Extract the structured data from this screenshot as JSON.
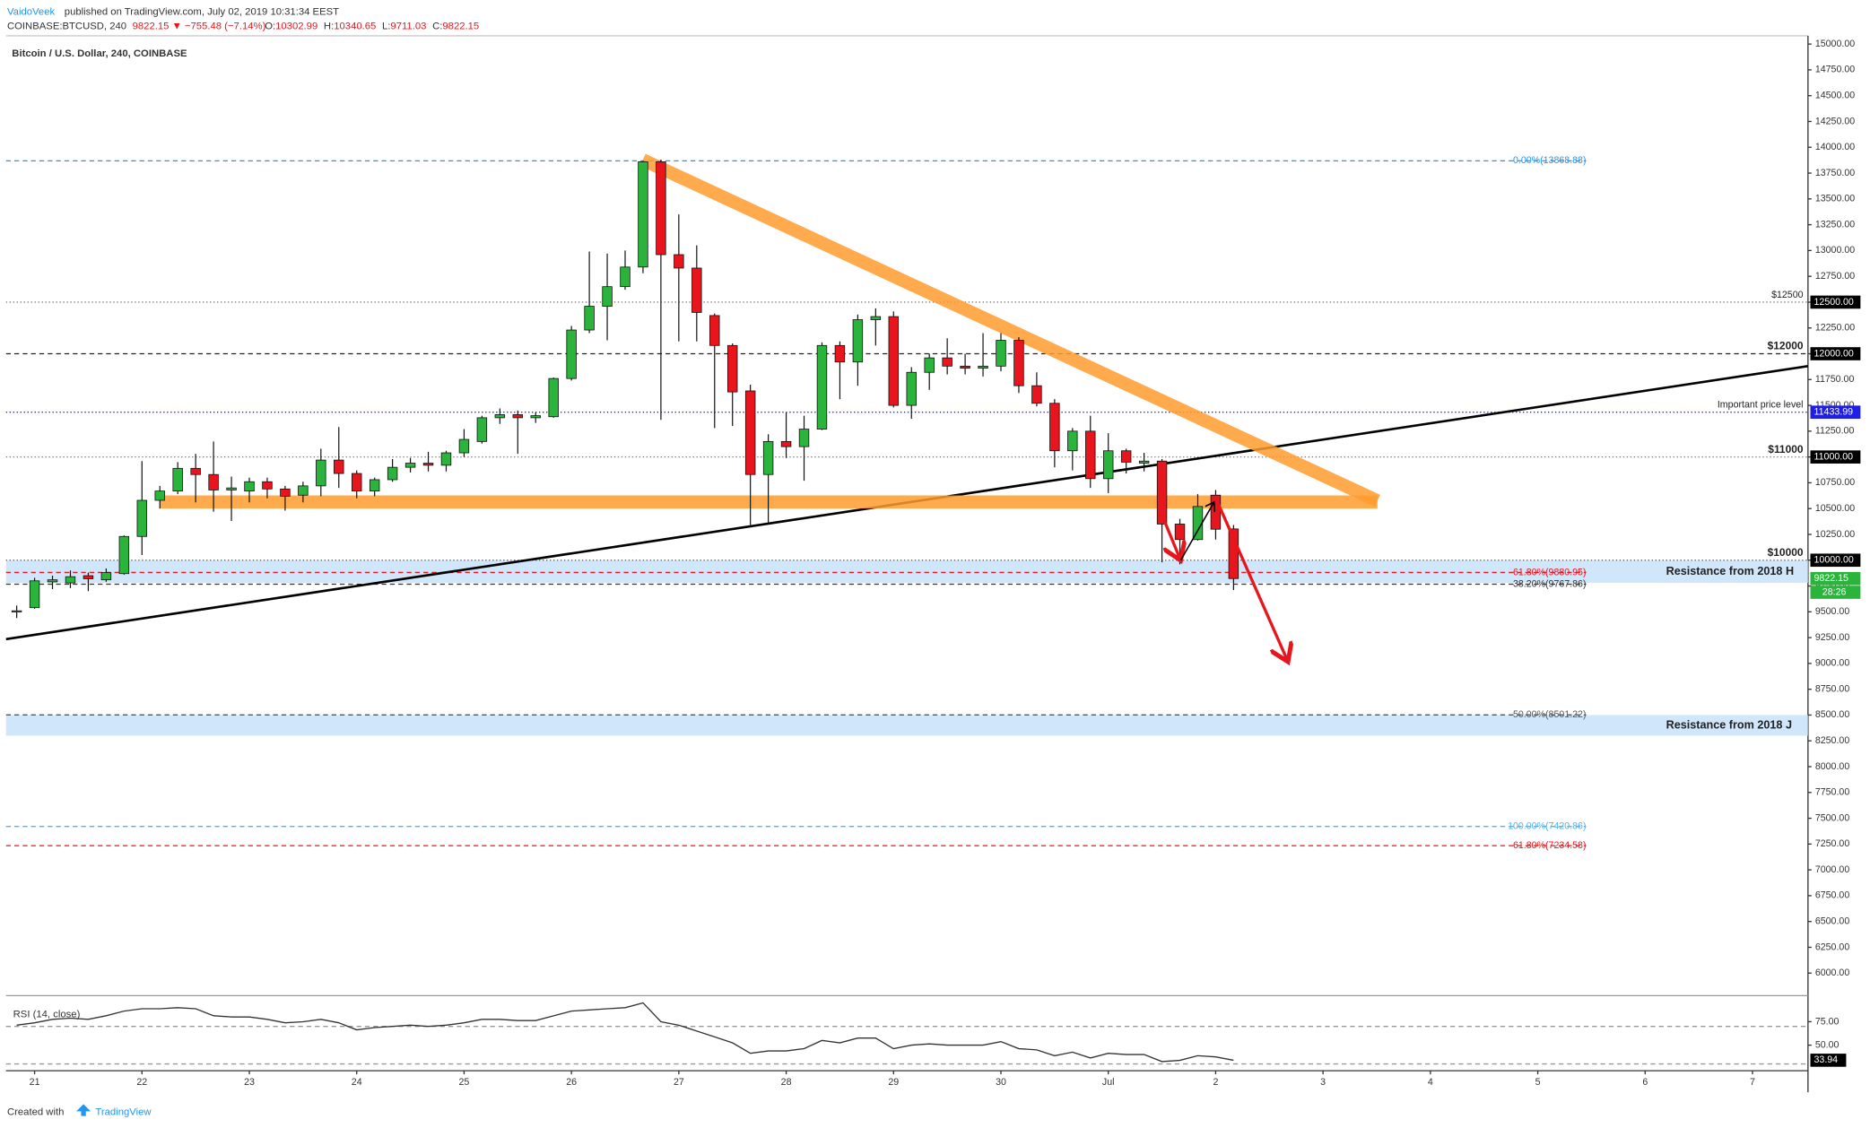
{
  "header": {
    "author": "VaidoVeek",
    "published": "published on TradingView.com, July 02, 2019 10:31:34 EEST",
    "symbol": "COINBASE:BTCUSD, 240",
    "change": "9822.15 ▼ −755.48 (−7.14%)",
    "ohlc_labels": [
      "O:",
      "H:",
      "L:",
      "C:"
    ]
  },
  "footer": {
    "created": "Created with",
    "brand": "TradingView"
  },
  "chart_data": {
    "type": "candlestick",
    "title": "Bitcoin / U.S. Dollar, 240, COINBASE",
    "up_color": "#2ab43c",
    "down_color": "#e8151d",
    "open": [
      9500,
      9540,
      9790,
      9780,
      9850,
      9810,
      9870,
      10230,
      10580,
      10670,
      10890,
      10830,
      10680,
      10670,
      10760,
      10690,
      10630,
      10720,
      10970,
      10840,
      10670,
      10780,
      10900,
      10940,
      10920,
      11040,
      11150,
      11380,
      11410,
      11380,
      11390,
      11760,
      12230,
      12460,
      12650,
      12840,
      13860,
      12960,
      12830,
      12370,
      12080,
      11640,
      10830,
      11150,
      11100,
      11270,
      12080,
      11920,
      12330,
      12360,
      11500,
      11820,
      11960,
      11880,
      11860,
      11880,
      12130,
      11690,
      11520,
      11060,
      11250,
      10790,
      11060,
      10940,
      10960,
      10350,
      10200,
      10630,
      10302.99
    ],
    "high": [
      9560,
      9830,
      9850,
      9900,
      9880,
      9920,
      10240,
      10960,
      10720,
      10950,
      11030,
      11150,
      10810,
      10800,
      10800,
      10720,
      10760,
      11080,
      11290,
      10870,
      10800,
      10980,
      10990,
      11050,
      11060,
      11270,
      11400,
      11470,
      11450,
      11430,
      11770,
      12270,
      12990,
      12970,
      13000,
      13870,
      13880,
      13350,
      13050,
      12390,
      12100,
      11700,
      11220,
      11430,
      11400,
      12110,
      12120,
      12380,
      12440,
      12410,
      11870,
      12000,
      12150,
      12000,
      12200,
      12200,
      12160,
      11820,
      11560,
      11280,
      11400,
      11230,
      11080,
      11040,
      10980,
      10400,
      10640,
      10680,
      10340.65
    ],
    "low": [
      9440,
      9530,
      9720,
      9730,
      9700,
      9790,
      9860,
      10050,
      10500,
      10640,
      10560,
      10470,
      10380,
      10560,
      10600,
      10480,
      10560,
      10620,
      10700,
      10600,
      10620,
      10760,
      10850,
      10860,
      10860,
      11000,
      11130,
      11320,
      11030,
      11330,
      11380,
      11740,
      12200,
      12130,
      12620,
      12780,
      11360,
      12120,
      12120,
      11280,
      11300,
      10340,
      10360,
      10990,
      10770,
      11260,
      11560,
      11690,
      12080,
      11480,
      11370,
      11650,
      11800,
      11800,
      11780,
      11830,
      11620,
      11490,
      10900,
      10870,
      10700,
      10650,
      10840,
      10860,
      9980,
      9960,
      10190,
      10200,
      9711.03
    ],
    "close": [
      9510,
      9800,
      9810,
      9840,
      9820,
      9880,
      10230,
      10580,
      10670,
      10890,
      10830,
      10680,
      10700,
      10760,
      10690,
      10620,
      10720,
      10970,
      10840,
      10670,
      10780,
      10900,
      10940,
      10920,
      11040,
      11170,
      11380,
      11410,
      11380,
      11400,
      11760,
      12230,
      12460,
      12650,
      12840,
      13860,
      12960,
      12830,
      12400,
      12080,
      11630,
      10830,
      11150,
      11100,
      11270,
      12080,
      11920,
      12330,
      12360,
      11500,
      11820,
      11960,
      11880,
      11860,
      11880,
      12130,
      11690,
      11520,
      11060,
      11250,
      10790,
      11060,
      10950,
      10960,
      10350,
      10200,
      10520,
      10300,
      9822.15
    ],
    "xlim": [
      -0.6,
      100.1
    ],
    "xticks": [
      {
        "value": 1,
        "label": "21"
      },
      {
        "value": 7,
        "label": "22"
      },
      {
        "value": 13,
        "label": "23"
      },
      {
        "value": 19,
        "label": "24"
      },
      {
        "value": 25,
        "label": "25"
      },
      {
        "value": 31,
        "label": "26"
      },
      {
        "value": 37,
        "label": "27"
      },
      {
        "value": 43,
        "label": "28"
      },
      {
        "value": 49,
        "label": "29"
      },
      {
        "value": 55,
        "label": "30"
      },
      {
        "value": 61,
        "label": "Jul"
      },
      {
        "value": 67,
        "label": "2"
      },
      {
        "value": 73,
        "label": "3"
      },
      {
        "value": 79,
        "label": "4"
      },
      {
        "value": 85,
        "label": "5"
      },
      {
        "value": 91,
        "label": "6"
      },
      {
        "value": 97,
        "label": "7"
      }
    ],
    "ylim": [
      5805,
      15080
    ],
    "yticks": [
      {
        "value": 6000,
        "label": "6000.00"
      },
      {
        "value": 6250,
        "label": "6250.00"
      },
      {
        "value": 6500,
        "label": "6500.00"
      },
      {
        "value": 6750,
        "label": "6750.00"
      },
      {
        "value": 7000,
        "label": "7000.00"
      },
      {
        "value": 7250,
        "label": "7250.00"
      },
      {
        "value": 7500,
        "label": "7500.00"
      },
      {
        "value": 7750,
        "label": "7750.00"
      },
      {
        "value": 8000,
        "label": "8000.00"
      },
      {
        "value": 8250,
        "label": "8250.00"
      },
      {
        "value": 8500,
        "label": "8500.00"
      },
      {
        "value": 8750,
        "label": "8750.00"
      },
      {
        "value": 9000,
        "label": "9000.00"
      },
      {
        "value": 9250,
        "label": "9250.00"
      },
      {
        "value": 9500,
        "label": "9500.00"
      },
      {
        "value": 9750,
        "label": "9750.00"
      },
      {
        "value": 10000,
        "label": "10000.00"
      },
      {
        "value": 10250,
        "label": "10250.00"
      },
      {
        "value": 10500,
        "label": "10500.00"
      },
      {
        "value": 10750,
        "label": "10750.00"
      },
      {
        "value": 11000,
        "label": "11000.00"
      },
      {
        "value": 11250,
        "label": "11250.00"
      },
      {
        "value": 11500,
        "label": "11500.00"
      },
      {
        "value": 11750,
        "label": "11750.00"
      },
      {
        "value": 12000,
        "label": "12000.00"
      },
      {
        "value": 12250,
        "label": "12250.00"
      },
      {
        "value": 12500,
        "label": "12500.00"
      },
      {
        "value": 12750,
        "label": "12750.00"
      },
      {
        "value": 13000,
        "label": "13000.00"
      },
      {
        "value": 13250,
        "label": "13250.00"
      },
      {
        "value": 13500,
        "label": "13500.00"
      },
      {
        "value": 13750,
        "label": "13750.00"
      },
      {
        "value": 14000,
        "label": "14000.00"
      },
      {
        "value": 14250,
        "label": "14250.00"
      },
      {
        "value": 14500,
        "label": "14500.00"
      },
      {
        "value": 14750,
        "label": "14750.00"
      },
      {
        "value": 15000,
        "label": "15000.00"
      }
    ],
    "levels": [
      {
        "value": 13868.88,
        "color": "#2196f3",
        "dash": "4 3",
        "fib_label": "0.00%(13868.88)"
      },
      {
        "value": 12500,
        "color": "#777777",
        "dash": "1 2",
        "note": "$12500",
        "axis_label": "12500.00",
        "box_color": "#000000"
      },
      {
        "value": 12000,
        "color": "#222222",
        "dash": "4 3",
        "note": "$12000",
        "axis_label": "12000.00",
        "box_color": "#000000",
        "bold": true
      },
      {
        "value": 11433.99,
        "color": "#1e1ee6",
        "dash": "1 2",
        "note": "Important price level",
        "axis_label": "11433.99",
        "box_color": "#1e1ee6"
      },
      {
        "value": 11000,
        "color": "#777777",
        "dash": "1 2",
        "note": "$11000",
        "axis_label": "11000.00",
        "box_color": "#000000",
        "bold": true
      },
      {
        "value": 10000,
        "color": "#555555",
        "dash": "1 2",
        "note": "$10000",
        "axis_label": "10000.00",
        "box_color": "#000000",
        "bold": true
      },
      {
        "value": 9880.95,
        "color": "#e8151d",
        "dash": "4 3",
        "fib_label": "61.80%(9880.95)"
      },
      {
        "value": 9767.86,
        "color": "#333333",
        "dash": "4 3",
        "fib_label": "38.20%(9767.86)"
      },
      {
        "value": 8501.22,
        "color": "#555555",
        "dash": "4 3",
        "fib_label": "50.00%(8501.22)"
      },
      {
        "value": 7420.86,
        "color": "#4fb3f0",
        "dash": "4 3",
        "fib_label": "100.00%(7420.86)"
      },
      {
        "value": 7234.58,
        "color": "#e8151d",
        "dash": "4 3",
        "fib_label": "61.80%(7234.58)"
      }
    ],
    "zones": [
      {
        "from": 9780,
        "to": 10000,
        "label": "Resistance from 2018 H",
        "color": "#cfe6fb"
      },
      {
        "from": 8300,
        "to": 8500,
        "label": "Resistance from 2018 J",
        "color": "#cfe6fb"
      }
    ],
    "last_color": "#2ab43c",
    "timer": "28:26",
    "rsi": {
      "label": "RSI (14, close)",
      "color": "#333333",
      "ylim": [
        24,
        99
      ],
      "yticks": [
        {
          "value": 75,
          "label": "75.00"
        },
        {
          "value": 50,
          "label": "50.00"
        }
      ],
      "bands": [
        70,
        30
      ],
      "values": [
        71.3,
        73.8,
        77.5,
        78.8,
        77.5,
        81.3,
        86.3,
        88.8,
        88.8,
        90,
        88.8,
        81.3,
        80,
        80,
        77.5,
        73.8,
        75,
        77.5,
        73.8,
        66.3,
        68.8,
        70,
        71.3,
        70,
        71.3,
        73.8,
        77.5,
        77.5,
        76.3,
        76.3,
        81.3,
        86.3,
        87.5,
        88.8,
        90,
        95,
        75,
        71.3,
        65,
        58.8,
        52.5,
        41.3,
        43.8,
        43.8,
        46.3,
        55,
        52.5,
        57.5,
        57.5,
        46.3,
        50,
        51.3,
        50,
        50,
        50,
        53.8,
        46.3,
        45,
        38.8,
        42.5,
        36.3,
        41.3,
        40,
        40,
        32.5,
        33.8,
        38.8,
        37.5,
        33.94
      ]
    }
  }
}
